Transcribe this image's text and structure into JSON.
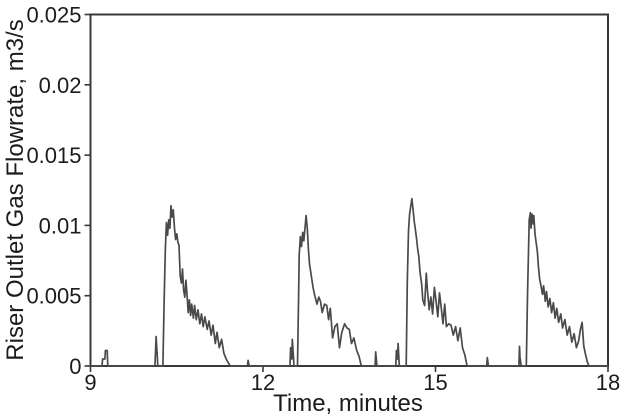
{
  "chart_data": {
    "type": "line",
    "title": "",
    "xlabel": "Time, minutes",
    "ylabel": "Riser Outlet Gas Flowrate, m3/s",
    "xlim": [
      9,
      18
    ],
    "ylim": [
      0,
      0.025
    ],
    "x_ticks": [
      9,
      12,
      15,
      18
    ],
    "x_tick_labels": [
      "9",
      "12",
      "15",
      "18"
    ],
    "y_ticks": [
      0,
      0.005,
      0.01,
      0.015,
      0.02,
      0.025
    ],
    "y_tick_labels": [
      "0",
      "0.005",
      "0.01",
      "0.015",
      "0.02",
      "0.025"
    ],
    "grid": false,
    "legend": null,
    "line_color": "#4a4a4a",
    "frame_color": "#383838",
    "text_color": "#1c1c1c",
    "series": [
      {
        "name": "riser-outlet-gas-flowrate",
        "points": [
          [
            9.0,
            0
          ],
          [
            9.2,
            0
          ],
          [
            9.21,
            0.0005
          ],
          [
            9.25,
            0.0005
          ],
          [
            9.26,
            0.0011
          ],
          [
            9.29,
            0.0011
          ],
          [
            9.3,
            0
          ],
          [
            10.12,
            0
          ],
          [
            10.13,
            0.001
          ],
          [
            10.14,
            0.0021
          ],
          [
            10.16,
            0.0008
          ],
          [
            10.17,
            0
          ],
          [
            10.26,
            0
          ],
          [
            10.28,
            0.0045
          ],
          [
            10.3,
            0.0082
          ],
          [
            10.32,
            0.0102
          ],
          [
            10.34,
            0.0093
          ],
          [
            10.36,
            0.0104
          ],
          [
            10.38,
            0.0098
          ],
          [
            10.4,
            0.0114
          ],
          [
            10.42,
            0.0106
          ],
          [
            10.44,
            0.0111
          ],
          [
            10.46,
            0.0098
          ],
          [
            10.48,
            0.009
          ],
          [
            10.5,
            0.0094
          ],
          [
            10.52,
            0.0088
          ],
          [
            10.54,
            0.0086
          ],
          [
            10.56,
            0.0064
          ],
          [
            10.58,
            0.0059
          ],
          [
            10.6,
            0.0069
          ],
          [
            10.62,
            0.0054
          ],
          [
            10.64,
            0.0049
          ],
          [
            10.66,
            0.0061
          ],
          [
            10.68,
            0.005
          ],
          [
            10.7,
            0.0038
          ],
          [
            10.72,
            0.0047
          ],
          [
            10.74,
            0.0036
          ],
          [
            10.76,
            0.0044
          ],
          [
            10.79,
            0.0034
          ],
          [
            10.81,
            0.0043
          ],
          [
            10.84,
            0.0033
          ],
          [
            10.87,
            0.004
          ],
          [
            10.9,
            0.003
          ],
          [
            10.93,
            0.0037
          ],
          [
            10.96,
            0.0028
          ],
          [
            10.99,
            0.0035
          ],
          [
            11.03,
            0.0026
          ],
          [
            11.06,
            0.0032
          ],
          [
            11.1,
            0.0022
          ],
          [
            11.13,
            0.0029
          ],
          [
            11.17,
            0.0016
          ],
          [
            11.2,
            0.0024
          ],
          [
            11.24,
            0.0013
          ],
          [
            11.28,
            0.0019
          ],
          [
            11.32,
            0.0009
          ],
          [
            11.36,
            0.0005
          ],
          [
            11.4,
            0.0002
          ],
          [
            11.43,
            0
          ],
          [
            11.73,
            0
          ],
          [
            11.74,
            0.0004
          ],
          [
            11.76,
            0
          ],
          [
            12.47,
            0
          ],
          [
            12.48,
            0.0013
          ],
          [
            12.5,
            0.0005
          ],
          [
            12.51,
            0.0019
          ],
          [
            12.53,
            0.0006
          ],
          [
            12.54,
            0
          ],
          [
            12.6,
            0
          ],
          [
            12.62,
            0.005
          ],
          [
            12.63,
            0.0079
          ],
          [
            12.65,
            0.0092
          ],
          [
            12.67,
            0.0085
          ],
          [
            12.69,
            0.0095
          ],
          [
            12.71,
            0.0089
          ],
          [
            12.73,
            0.0098
          ],
          [
            12.75,
            0.0107
          ],
          [
            12.77,
            0.0098
          ],
          [
            12.79,
            0.0083
          ],
          [
            12.81,
            0.0072
          ],
          [
            12.83,
            0.0067
          ],
          [
            12.87,
            0.0056
          ],
          [
            12.9,
            0.005
          ],
          [
            12.94,
            0.0044
          ],
          [
            12.97,
            0.0049
          ],
          [
            13.0,
            0.0046
          ],
          [
            13.03,
            0.0038
          ],
          [
            13.07,
            0.0044
          ],
          [
            13.11,
            0.0043
          ],
          [
            13.14,
            0.0033
          ],
          [
            13.17,
            0.0041
          ],
          [
            13.21,
            0.002
          ],
          [
            13.25,
            0.0028
          ],
          [
            13.29,
            0.003
          ],
          [
            13.33,
            0.0013
          ],
          [
            13.37,
            0.0024
          ],
          [
            13.42,
            0.003
          ],
          [
            13.46,
            0.0027
          ],
          [
            13.5,
            0.0026
          ],
          [
            13.54,
            0.0016
          ],
          [
            13.58,
            0.002
          ],
          [
            13.63,
            0.0011
          ],
          [
            13.67,
            0.0007
          ],
          [
            13.71,
            0
          ],
          [
            13.95,
            0
          ],
          [
            13.96,
            0.001
          ],
          [
            13.98,
            0
          ],
          [
            14.31,
            0
          ],
          [
            14.32,
            0.0011
          ],
          [
            14.34,
            0.0005
          ],
          [
            14.35,
            0.0016
          ],
          [
            14.37,
            0
          ],
          [
            14.49,
            0
          ],
          [
            14.51,
            0.006
          ],
          [
            14.53,
            0.0096
          ],
          [
            14.55,
            0.0108
          ],
          [
            14.57,
            0.0114
          ],
          [
            14.59,
            0.0119
          ],
          [
            14.61,
            0.0111
          ],
          [
            14.63,
            0.0103
          ],
          [
            14.65,
            0.0097
          ],
          [
            14.67,
            0.0091
          ],
          [
            14.69,
            0.0083
          ],
          [
            14.71,
            0.0078
          ],
          [
            14.73,
            0.0067
          ],
          [
            14.76,
            0.0058
          ],
          [
            14.78,
            0.0047
          ],
          [
            14.81,
            0.0043
          ],
          [
            14.84,
            0.0066
          ],
          [
            14.86,
            0.0054
          ],
          [
            14.89,
            0.004
          ],
          [
            14.92,
            0.0049
          ],
          [
            14.95,
            0.0037
          ],
          [
            14.98,
            0.0056
          ],
          [
            15.01,
            0.0046
          ],
          [
            15.04,
            0.0035
          ],
          [
            15.07,
            0.0052
          ],
          [
            15.1,
            0.0041
          ],
          [
            15.13,
            0.003
          ],
          [
            15.16,
            0.0044
          ],
          [
            15.19,
            0.0028
          ],
          [
            15.23,
            0.003
          ],
          [
            15.27,
            0.0029
          ],
          [
            15.31,
            0.0022
          ],
          [
            15.35,
            0.0028
          ],
          [
            15.39,
            0.0018
          ],
          [
            15.43,
            0.0027
          ],
          [
            15.47,
            0.0013
          ],
          [
            15.51,
            0.0008
          ],
          [
            15.55,
            0
          ],
          [
            15.89,
            0
          ],
          [
            15.9,
            0.0006
          ],
          [
            15.92,
            0
          ],
          [
            16.45,
            0
          ],
          [
            16.46,
            0.0014
          ],
          [
            16.47,
            0.0006
          ],
          [
            16.49,
            0
          ],
          [
            16.58,
            0
          ],
          [
            16.6,
            0.005
          ],
          [
            16.62,
            0.0088
          ],
          [
            16.63,
            0.0104
          ],
          [
            16.65,
            0.0109
          ],
          [
            16.66,
            0.0098
          ],
          [
            16.68,
            0.0108
          ],
          [
            16.7,
            0.0101
          ],
          [
            16.71,
            0.0107
          ],
          [
            16.73,
            0.0094
          ],
          [
            16.75,
            0.0088
          ],
          [
            16.77,
            0.0082
          ],
          [
            16.79,
            0.0071
          ],
          [
            16.81,
            0.0062
          ],
          [
            16.84,
            0.0056
          ],
          [
            16.86,
            0.0051
          ],
          [
            16.88,
            0.0057
          ],
          [
            16.91,
            0.0046
          ],
          [
            16.93,
            0.0053
          ],
          [
            16.96,
            0.0042
          ],
          [
            16.99,
            0.0048
          ],
          [
            17.02,
            0.0038
          ],
          [
            17.05,
            0.0045
          ],
          [
            17.08,
            0.0034
          ],
          [
            17.11,
            0.0041
          ],
          [
            17.14,
            0.0031
          ],
          [
            17.18,
            0.0037
          ],
          [
            17.21,
            0.0027
          ],
          [
            17.25,
            0.0033
          ],
          [
            17.29,
            0.0022
          ],
          [
            17.33,
            0.0028
          ],
          [
            17.37,
            0.0017
          ],
          [
            17.41,
            0.0023
          ],
          [
            17.45,
            0.0013
          ],
          [
            17.49,
            0.0018
          ],
          [
            17.52,
            0.0026
          ],
          [
            17.55,
            0.0031
          ],
          [
            17.58,
            0.0014
          ],
          [
            17.61,
            0.0008
          ],
          [
            17.64,
            0.0003
          ],
          [
            17.67,
            0
          ],
          [
            18.0,
            0
          ]
        ]
      }
    ]
  }
}
